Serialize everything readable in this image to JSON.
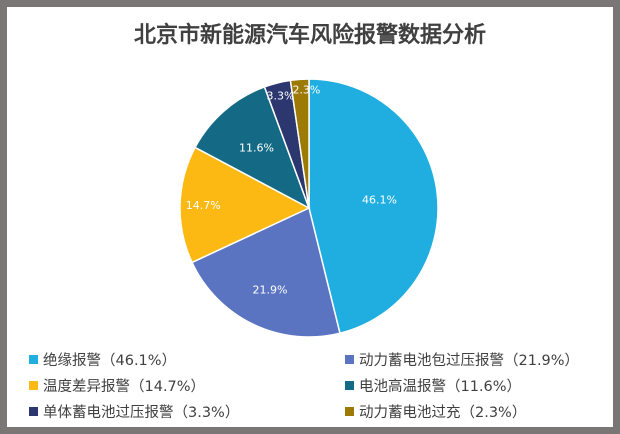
{
  "title": "北京市新能源汽车风险报警数据分析",
  "chart_data": {
    "type": "pie",
    "title": "北京市新能源汽车风险报警数据分析",
    "categories": [
      "绝缘报警",
      "动力蓄电池包过压报警",
      "温度差异报警",
      "电池高温报警",
      "单体蓄电池过压报警",
      "动力蓄电池过充"
    ],
    "values": [
      46.1,
      21.9,
      14.7,
      11.6,
      3.3,
      2.3
    ],
    "unit": "%",
    "colors": [
      "#20aee0",
      "#5b74c2",
      "#fdb913",
      "#146a84",
      "#2c3770",
      "#9c7a05"
    ],
    "data_labels": [
      "46.1%",
      "21.9%",
      "14.7%",
      "11.6%",
      "3.3%",
      "2.3%"
    ],
    "start_angle": "12 o'clock, clockwise",
    "legend_position": "bottom"
  },
  "legend": [
    {
      "label": "绝缘报警（46.1%）",
      "color": "#20aee0"
    },
    {
      "label": "动力蓄电池包过压报警（21.9%）",
      "color": "#5b74c2"
    },
    {
      "label": "温度差异报警（14.7%）",
      "color": "#fdb913"
    },
    {
      "label": "电池高温报警（11.6%）",
      "color": "#146a84"
    },
    {
      "label": "单体蓄电池过压报警（3.3%）",
      "color": "#2c3770"
    },
    {
      "label": "动力蓄电池过充（2.3%）",
      "color": "#9c7a05"
    }
  ]
}
